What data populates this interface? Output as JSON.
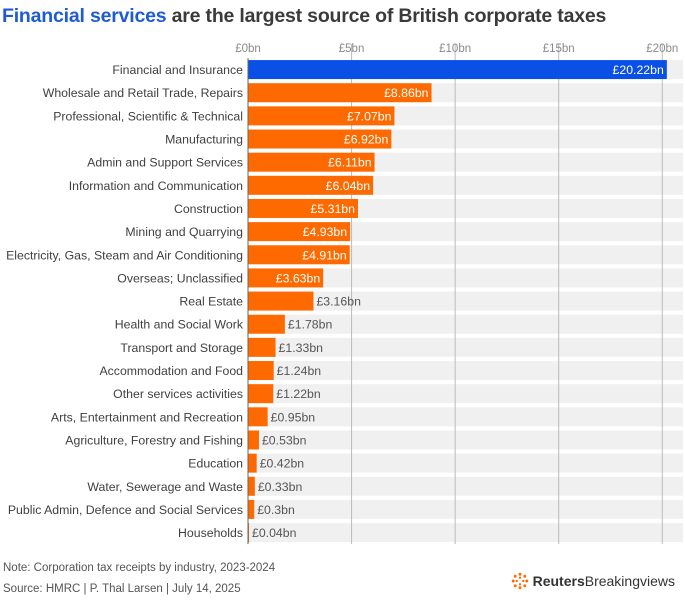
{
  "title": {
    "highlight": "Financial services",
    "rest": " are the largest source of British corporate taxes"
  },
  "chart_data": {
    "type": "bar",
    "orientation": "horizontal",
    "title": "Financial services are the largest source of British corporate taxes",
    "xlim": [
      0,
      21
    ],
    "ticks": [
      {
        "value": 0,
        "label": "£0bn"
      },
      {
        "value": 5,
        "label": "£5bn"
      },
      {
        "value": 10,
        "label": "£10bn"
      },
      {
        "value": 15,
        "label": "£15bn"
      },
      {
        "value": 20,
        "label": "£20bn"
      }
    ],
    "categories": [
      "Financial and Insurance",
      "Wholesale and Retail Trade, Repairs",
      "Professional, Scientific & Technical",
      "Manufacturing",
      "Admin and Support Services",
      "Information and Communication",
      "Construction",
      "Mining and Quarrying",
      "Electricity, Gas, Steam and Air Conditioning",
      "Overseas; Unclassified",
      "Real Estate",
      "Health and Social Work",
      "Transport and Storage",
      "Accommodation and Food",
      "Other services activities",
      "Arts, Entertainment and Recreation",
      "Agriculture, Forestry and Fishing",
      "Education",
      "Water, Sewerage and Waste",
      "Public Admin, Defence and Social Services",
      "Households"
    ],
    "values": [
      20.22,
      8.86,
      7.07,
      6.92,
      6.11,
      6.04,
      5.31,
      4.93,
      4.91,
      3.63,
      3.16,
      1.78,
      1.33,
      1.24,
      1.22,
      0.95,
      0.53,
      0.42,
      0.33,
      0.3,
      0.04
    ],
    "value_labels": [
      "£20.22bn",
      "£8.86bn",
      "£7.07bn",
      "£6.92bn",
      "£6.11bn",
      "£6.04bn",
      "£5.31bn",
      "£4.93bn",
      "£4.91bn",
      "£3.63bn",
      "£3.16bn",
      "£1.78bn",
      "£1.33bn",
      "£1.24bn",
      "£1.22bn",
      "£0.95bn",
      "£0.53bn",
      "£0.42bn",
      "£0.33bn",
      "£0.3bn",
      "£0.04bn"
    ],
    "colors": {
      "highlight": "#0a4fe6",
      "bar": "#ff6a00",
      "row_band": "#f0f0f0",
      "grid": "#bbbbbb"
    }
  },
  "footer": {
    "note": "Note: Corporation tax receipts by industry, 2023-2024",
    "source": "Source: HMRC | P. Thal Larsen | July 14, 2025"
  },
  "brand": {
    "part1": "Reuters",
    "part2": "Breakingviews"
  }
}
